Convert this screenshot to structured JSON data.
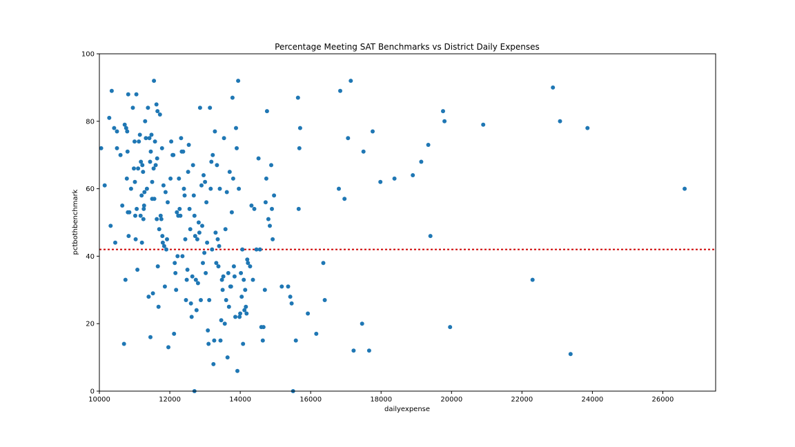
{
  "chart_data": {
    "type": "scatter",
    "title": "Percentage Meeting SAT Benchmarks vs District Daily Expenses",
    "xlabel": "dailyexpense",
    "ylabel": "pctbothbenchmark",
    "xlim": [
      10000,
      27500
    ],
    "ylim": [
      0,
      100
    ],
    "xticks": [
      10000,
      12000,
      14000,
      16000,
      18000,
      20000,
      22000,
      24000,
      26000
    ],
    "yticks": [
      0,
      20,
      40,
      60,
      80,
      100
    ],
    "grid": false,
    "marker_color": "#1f77b4",
    "reference_line": {
      "y": 42,
      "color": "#cc0000",
      "style": "dotted"
    },
    "points": [
      [
        10050,
        72
      ],
      [
        10150,
        61
      ],
      [
        10280,
        81
      ],
      [
        10320,
        49
      ],
      [
        10350,
        89
      ],
      [
        10420,
        78
      ],
      [
        10450,
        44
      ],
      [
        10500,
        77
      ],
      [
        10500,
        72
      ],
      [
        10600,
        70
      ],
      [
        10650,
        55
      ],
      [
        10700,
        14
      ],
      [
        10720,
        79
      ],
      [
        10740,
        33
      ],
      [
        10760,
        78
      ],
      [
        10780,
        63
      ],
      [
        10790,
        77
      ],
      [
        10800,
        71
      ],
      [
        10810,
        53
      ],
      [
        10820,
        88
      ],
      [
        10830,
        46
      ],
      [
        10850,
        53
      ],
      [
        10900,
        60
      ],
      [
        10950,
        84
      ],
      [
        10980,
        66
      ],
      [
        11000,
        74
      ],
      [
        11010,
        62
      ],
      [
        11020,
        52
      ],
      [
        11030,
        45
      ],
      [
        11050,
        88
      ],
      [
        11060,
        54
      ],
      [
        11080,
        36
      ],
      [
        11100,
        66
      ],
      [
        11120,
        74
      ],
      [
        11150,
        76
      ],
      [
        11170,
        52
      ],
      [
        11180,
        68
      ],
      [
        11200,
        58
      ],
      [
        11210,
        44
      ],
      [
        11220,
        67
      ],
      [
        11240,
        65
      ],
      [
        11250,
        51
      ],
      [
        11260,
        54
      ],
      [
        11270,
        55
      ],
      [
        11280,
        59
      ],
      [
        11300,
        80
      ],
      [
        11320,
        75
      ],
      [
        11350,
        60
      ],
      [
        11380,
        84
      ],
      [
        11400,
        28
      ],
      [
        11420,
        75
      ],
      [
        11440,
        68
      ],
      [
        11450,
        16
      ],
      [
        11460,
        71
      ],
      [
        11480,
        76
      ],
      [
        11500,
        57
      ],
      [
        11500,
        62
      ],
      [
        11520,
        29
      ],
      [
        11540,
        66
      ],
      [
        11550,
        92
      ],
      [
        11560,
        57
      ],
      [
        11580,
        74
      ],
      [
        11600,
        67
      ],
      [
        11620,
        85
      ],
      [
        11630,
        51
      ],
      [
        11640,
        69
      ],
      [
        11650,
        83
      ],
      [
        11660,
        37
      ],
      [
        11680,
        25
      ],
      [
        11700,
        48
      ],
      [
        11720,
        82
      ],
      [
        11740,
        52
      ],
      [
        11760,
        51
      ],
      [
        11780,
        72
      ],
      [
        11790,
        46
      ],
      [
        11800,
        44
      ],
      [
        11820,
        61
      ],
      [
        11840,
        43
      ],
      [
        11860,
        31
      ],
      [
        11880,
        59
      ],
      [
        11900,
        42
      ],
      [
        11920,
        45
      ],
      [
        11940,
        56
      ],
      [
        11960,
        13
      ],
      [
        12020,
        63
      ],
      [
        12040,
        74
      ],
      [
        12080,
        70
      ],
      [
        12100,
        70
      ],
      [
        12120,
        17
      ],
      [
        12140,
        38
      ],
      [
        12160,
        35
      ],
      [
        12180,
        30
      ],
      [
        12200,
        53
      ],
      [
        12220,
        40
      ],
      [
        12240,
        52
      ],
      [
        12260,
        63
      ],
      [
        12280,
        54
      ],
      [
        12300,
        52
      ],
      [
        12320,
        75
      ],
      [
        12340,
        71
      ],
      [
        12360,
        40
      ],
      [
        12380,
        71
      ],
      [
        12400,
        60
      ],
      [
        12420,
        58
      ],
      [
        12440,
        45
      ],
      [
        12460,
        27
      ],
      [
        12480,
        33
      ],
      [
        12500,
        36
      ],
      [
        12520,
        65
      ],
      [
        12540,
        73
      ],
      [
        12560,
        54
      ],
      [
        12580,
        48
      ],
      [
        12600,
        26
      ],
      [
        12620,
        22
      ],
      [
        12640,
        34
      ],
      [
        12660,
        67
      ],
      [
        12680,
        58
      ],
      [
        12700,
        52
      ],
      [
        12720,
        46
      ],
      [
        12740,
        33
      ],
      [
        12760,
        24
      ],
      [
        12780,
        45
      ],
      [
        12800,
        32
      ],
      [
        12820,
        50
      ],
      [
        12840,
        47
      ],
      [
        12860,
        84
      ],
      [
        12880,
        27
      ],
      [
        12900,
        61
      ],
      [
        12920,
        49
      ],
      [
        12940,
        38
      ],
      [
        12960,
        64
      ],
      [
        12980,
        41
      ],
      [
        13000,
        62
      ],
      [
        13020,
        35
      ],
      [
        13040,
        56
      ],
      [
        13060,
        44
      ],
      [
        13080,
        18
      ],
      [
        13100,
        14
      ],
      [
        13120,
        27
      ],
      [
        13140,
        84
      ],
      [
        13160,
        60
      ],
      [
        13180,
        68
      ],
      [
        13200,
        42
      ],
      [
        13220,
        70
      ],
      [
        13240,
        8
      ],
      [
        13260,
        15
      ],
      [
        13280,
        77
      ],
      [
        13300,
        47
      ],
      [
        13320,
        38
      ],
      [
        13340,
        67
      ],
      [
        13360,
        45
      ],
      [
        13380,
        37
      ],
      [
        13400,
        43
      ],
      [
        13420,
        60
      ],
      [
        13440,
        15
      ],
      [
        13460,
        21
      ],
      [
        13480,
        33
      ],
      [
        13500,
        30
      ],
      [
        13520,
        34
      ],
      [
        13540,
        75
      ],
      [
        13560,
        20
      ],
      [
        13580,
        48
      ],
      [
        13600,
        27
      ],
      [
        13620,
        59
      ],
      [
        13640,
        10
      ],
      [
        13660,
        35
      ],
      [
        13680,
        25
      ],
      [
        13700,
        65
      ],
      [
        13720,
        31
      ],
      [
        13740,
        31
      ],
      [
        13760,
        53
      ],
      [
        13780,
        87
      ],
      [
        13800,
        63
      ],
      [
        13820,
        37
      ],
      [
        13840,
        34
      ],
      [
        13860,
        22
      ],
      [
        13880,
        78
      ],
      [
        13900,
        72
      ],
      [
        13920,
        6
      ],
      [
        13940,
        92
      ],
      [
        13960,
        60
      ],
      [
        13980,
        22
      ],
      [
        14000,
        23
      ],
      [
        14020,
        35
      ],
      [
        14040,
        28
      ],
      [
        14060,
        42
      ],
      [
        14080,
        14
      ],
      [
        14100,
        33
      ],
      [
        14120,
        24
      ],
      [
        14140,
        30
      ],
      [
        14160,
        25
      ],
      [
        14180,
        23
      ],
      [
        14200,
        39
      ],
      [
        14220,
        38
      ],
      [
        14280,
        37
      ],
      [
        14320,
        55
      ],
      [
        14360,
        33
      ],
      [
        14400,
        54
      ],
      [
        14460,
        42
      ],
      [
        14520,
        69
      ],
      [
        14560,
        42
      ],
      [
        14600,
        19
      ],
      [
        14640,
        15
      ],
      [
        14660,
        19
      ],
      [
        14700,
        30
      ],
      [
        14720,
        56
      ],
      [
        14740,
        63
      ],
      [
        14760,
        83
      ],
      [
        14800,
        51
      ],
      [
        14840,
        49
      ],
      [
        14880,
        67
      ],
      [
        14900,
        54
      ],
      [
        14920,
        45
      ],
      [
        14960,
        58
      ],
      [
        15180,
        31
      ],
      [
        15360,
        31
      ],
      [
        15420,
        28
      ],
      [
        15460,
        26
      ],
      [
        15500,
        0
      ],
      [
        15580,
        15
      ],
      [
        15640,
        87
      ],
      [
        15660,
        54
      ],
      [
        15680,
        72
      ],
      [
        15700,
        78
      ],
      [
        15920,
        23
      ],
      [
        16160,
        17
      ],
      [
        16360,
        38
      ],
      [
        16400,
        27
      ],
      [
        16800,
        60
      ],
      [
        16840,
        89
      ],
      [
        16960,
        57
      ],
      [
        17060,
        75
      ],
      [
        17140,
        92
      ],
      [
        17220,
        12
      ],
      [
        17460,
        20
      ],
      [
        17500,
        71
      ],
      [
        17660,
        12
      ],
      [
        17760,
        77
      ],
      [
        17980,
        62
      ],
      [
        18380,
        63
      ],
      [
        18900,
        64
      ],
      [
        19140,
        68
      ],
      [
        19340,
        73
      ],
      [
        19400,
        46
      ],
      [
        19760,
        83
      ],
      [
        19800,
        80
      ],
      [
        19960,
        19
      ],
      [
        20900,
        79
      ],
      [
        22300,
        33
      ],
      [
        22880,
        90
      ],
      [
        23080,
        80
      ],
      [
        23380,
        11
      ],
      [
        23860,
        78
      ],
      [
        26620,
        60
      ],
      [
        12700,
        0
      ]
    ]
  }
}
